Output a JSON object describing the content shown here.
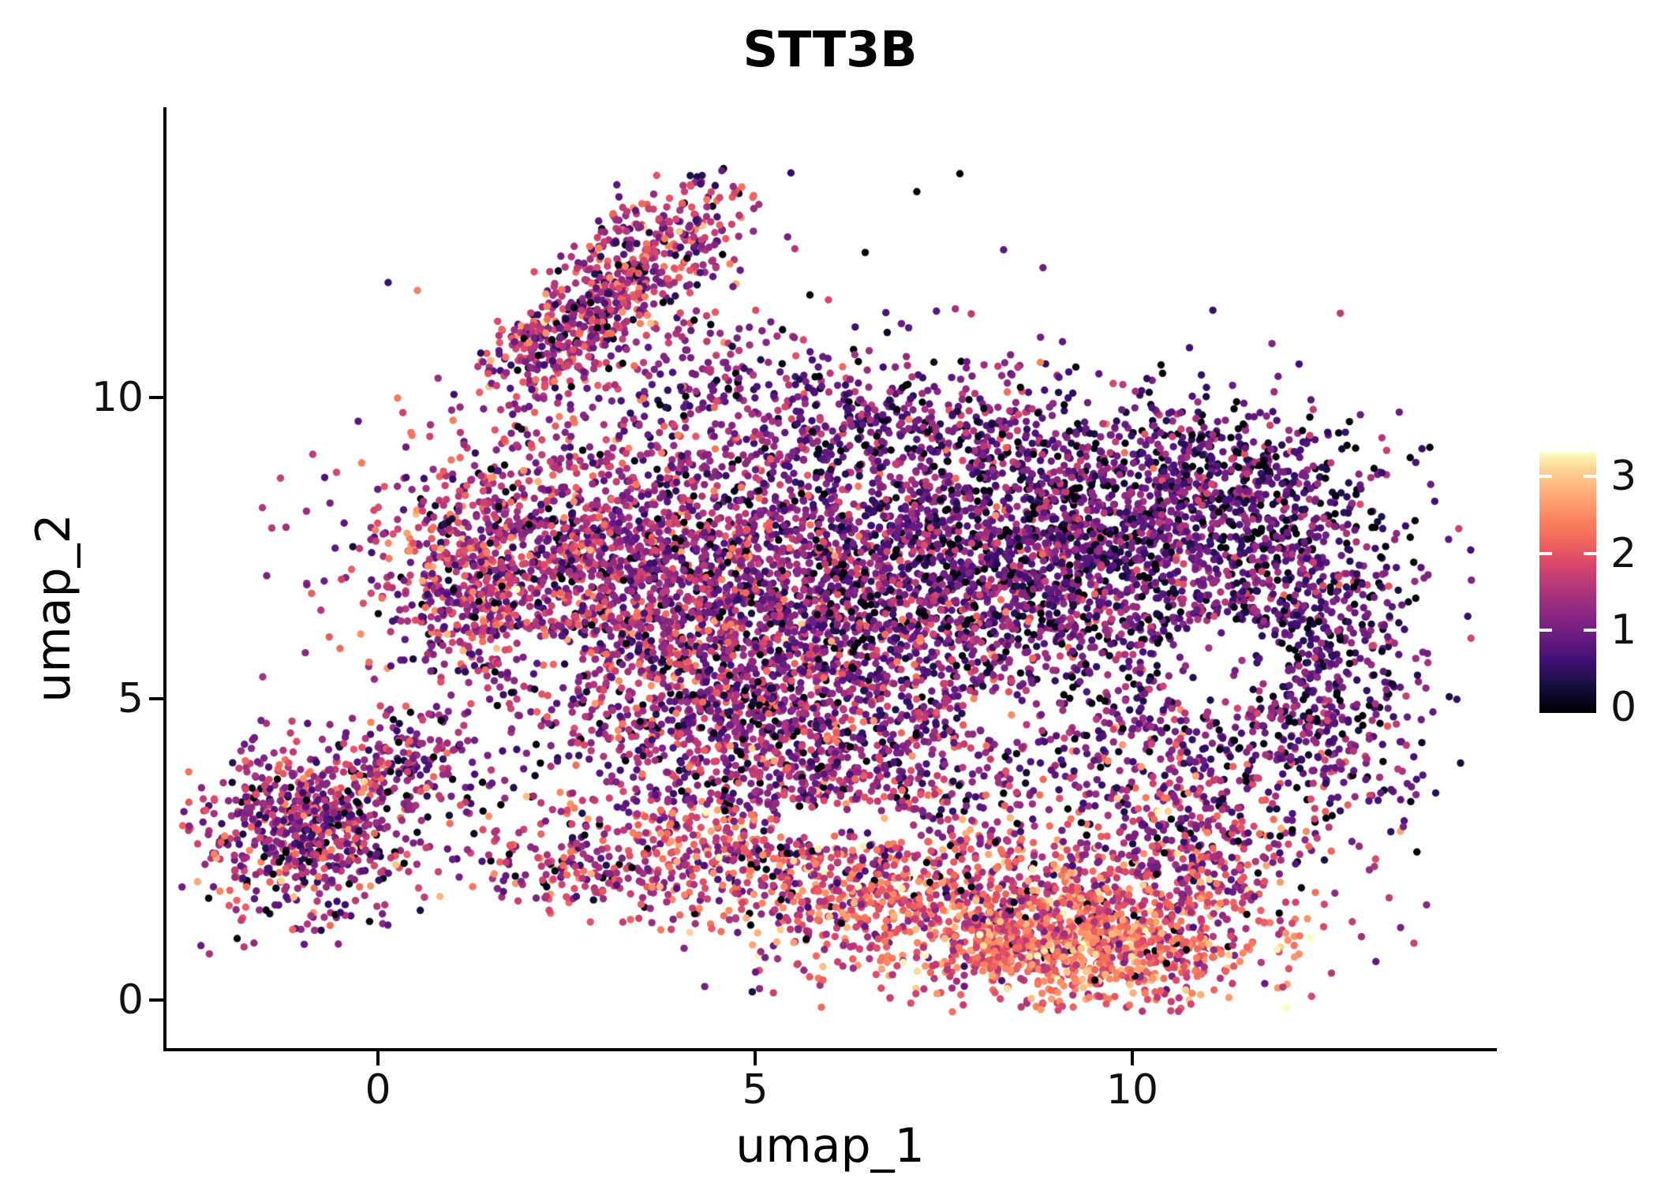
{
  "chart_data": {
    "type": "scatter",
    "title": "STT3B",
    "xlabel": "umap_1",
    "ylabel": "umap_2",
    "x_ticks": [
      0,
      5,
      10
    ],
    "y_ticks": [
      0,
      5,
      10
    ],
    "xlim": [
      -2.8,
      14.8
    ],
    "ylim": [
      -0.8,
      14.8
    ],
    "grid": false,
    "legend_position": "right-colorbar",
    "colorbar": {
      "ticks": [
        0,
        1,
        2,
        3
      ],
      "vmin": 0,
      "vmax": 3.32
    },
    "colormap": {
      "name": "magma",
      "stops": [
        "#000004",
        "#0c0927",
        "#231151",
        "#410f75",
        "#5f187f",
        "#782281",
        "#932b80",
        "#ae347b",
        "#c93f72",
        "#e25065",
        "#f1695c",
        "#fa815f",
        "#fe9b6d",
        "#feb67e",
        "#fed395",
        "#fcfdbf"
      ]
    },
    "point_radius_px": 4.7,
    "seed": 42,
    "points_encoding": "gaussian_clusters: n points per cluster, center(cx,cy), sd(sx,sy), rotation deg, expression mean/sd, zf = fraction of zero-expression (black) cells",
    "clusters": [
      {
        "n": 1700,
        "cx": 3.1,
        "cy": 7.3,
        "sx": 1.5,
        "sy": 1.15,
        "rot": -10,
        "mean": 1.45,
        "sd": 0.55,
        "zf": 0.05
      },
      {
        "n": 2100,
        "cx": 6.3,
        "cy": 6.4,
        "sx": 1.9,
        "sy": 1.5,
        "rot": 0,
        "mean": 1.15,
        "sd": 0.55,
        "zf": 0.07
      },
      {
        "n": 1900,
        "cx": 9.2,
        "cy": 7.7,
        "sx": 1.7,
        "sy": 1.15,
        "rot": -8,
        "mean": 0.95,
        "sd": 0.5,
        "zf": 0.1
      },
      {
        "n": 650,
        "cx": 12.1,
        "cy": 6.4,
        "sx": 0.8,
        "sy": 1.4,
        "rot": 15,
        "mean": 0.9,
        "sd": 0.5,
        "zf": 0.1
      },
      {
        "n": 420,
        "cx": 10.9,
        "cy": 4.5,
        "sx": 1.2,
        "sy": 1.1,
        "rot": 0,
        "mean": 1.0,
        "sd": 0.55,
        "zf": 0.08
      },
      {
        "n": 850,
        "cx": 4.9,
        "cy": 4.4,
        "sx": 1.5,
        "sy": 1.0,
        "rot": 0,
        "mean": 1.4,
        "sd": 0.6,
        "zf": 0.05
      },
      {
        "n": 480,
        "cx": 4.9,
        "cy": 2.3,
        "sx": 1.4,
        "sy": 0.55,
        "rot": -12,
        "mean": 1.8,
        "sd": 0.6,
        "zf": 0.04
      },
      {
        "n": 1250,
        "cx": 8.5,
        "cy": 1.3,
        "sx": 1.7,
        "sy": 0.7,
        "rot": -8,
        "mean": 2.0,
        "sd": 0.55,
        "zf": 0.03
      },
      {
        "n": 420,
        "cx": 9.4,
        "cy": 0.85,
        "sx": 0.95,
        "sy": 0.4,
        "rot": -5,
        "mean": 2.45,
        "sd": 0.45,
        "zf": 0.02
      },
      {
        "n": 330,
        "cx": 10.8,
        "cy": 2.3,
        "sx": 0.8,
        "sy": 0.8,
        "rot": 0,
        "mean": 1.6,
        "sd": 0.6,
        "zf": 0.05
      },
      {
        "n": 720,
        "cx": -0.9,
        "cy": 2.8,
        "sx": 0.72,
        "sy": 0.72,
        "rot": 0,
        "mean": 1.4,
        "sd": 0.6,
        "zf": 0.07
      },
      {
        "n": 160,
        "cx": 0.3,
        "cy": 3.9,
        "sx": 0.5,
        "sy": 0.42,
        "rot": 20,
        "mean": 1.3,
        "sd": 0.55,
        "zf": 0.06
      },
      {
        "n": 520,
        "cx": 3.4,
        "cy": 12.15,
        "sx": 1.0,
        "sy": 0.45,
        "rot": 50,
        "mean": 1.5,
        "sd": 0.6,
        "zf": 0.05
      },
      {
        "n": 240,
        "cx": 2.35,
        "cy": 10.95,
        "sx": 0.55,
        "sy": 0.35,
        "rot": 50,
        "mean": 1.5,
        "sd": 0.6,
        "zf": 0.05
      },
      {
        "n": 130,
        "cx": 4.4,
        "cy": 10.4,
        "sx": 0.8,
        "sy": 0.5,
        "rot": 0,
        "mean": 1.3,
        "sd": 0.5,
        "zf": 0.07
      },
      {
        "n": 300,
        "cx": 6.6,
        "cy": 9.6,
        "sx": 1.3,
        "sy": 0.5,
        "rot": 0,
        "mean": 1.0,
        "sd": 0.5,
        "zf": 0.08
      },
      {
        "n": 330,
        "cx": 11.4,
        "cy": 8.7,
        "sx": 1.0,
        "sy": 0.6,
        "rot": -12,
        "mean": 0.85,
        "sd": 0.5,
        "zf": 0.1
      },
      {
        "n": 380,
        "cx": 1.3,
        "cy": 6.9,
        "sx": 0.6,
        "sy": 0.95,
        "rot": 0,
        "mean": 1.55,
        "sd": 0.6,
        "zf": 0.04
      },
      {
        "n": 300,
        "cx": 7.5,
        "cy": 3.4,
        "sx": 1.5,
        "sy": 0.8,
        "rot": -5,
        "mean": 1.3,
        "sd": 0.6,
        "zf": 0.06
      },
      {
        "n": 130,
        "cx": 2.6,
        "cy": 2.1,
        "sx": 0.8,
        "sy": 0.35,
        "rot": -10,
        "mean": 1.6,
        "sd": 0.6,
        "zf": 0.05
      },
      {
        "n": 120,
        "cx": 12.6,
        "cy": 4.2,
        "sx": 0.5,
        "sy": 0.9,
        "rot": 25,
        "mean": 1.2,
        "sd": 0.6,
        "zf": 0.06
      },
      {
        "n": 250,
        "cx": 6.6,
        "cy": 6.8,
        "sx": 3.2,
        "sy": 2.6,
        "rot": 0,
        "mean": 1.1,
        "sd": 0.6,
        "zf": 0.1
      }
    ],
    "holes": [
      {
        "cx": 11.2,
        "cy": 5.5,
        "rx": 0.85,
        "ry": 0.8
      },
      {
        "cx": 2.2,
        "cy": 5.6,
        "rx": 0.5,
        "ry": 0.45
      },
      {
        "cx": 8.2,
        "cy": 4.7,
        "rx": 0.45,
        "ry": 0.4
      },
      {
        "cx": 6.3,
        "cy": 2.9,
        "rx": 1.0,
        "ry": 0.35
      }
    ]
  },
  "figure": {
    "background": "#ffffff",
    "axis_color": "#000000",
    "text_color": "#000000"
  }
}
